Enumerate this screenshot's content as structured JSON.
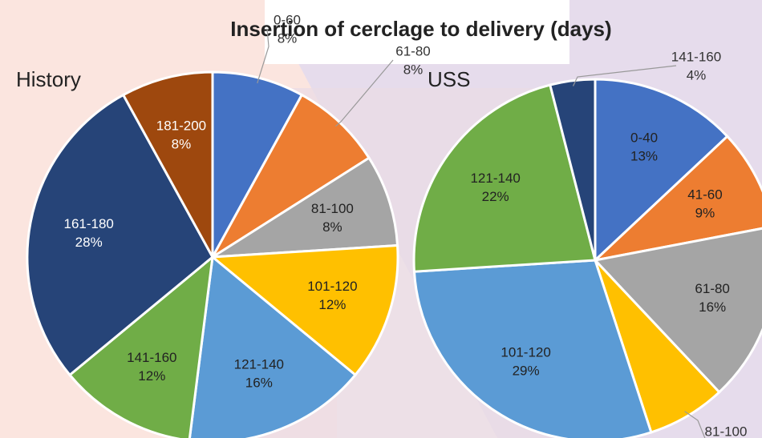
{
  "title": "Insertion of cerclage to delivery (days)",
  "chart_data": [
    {
      "type": "pie",
      "title": "History",
      "categories": [
        "0-60",
        "61-80",
        "81-100",
        "101-120",
        "121-140",
        "141-160",
        "161-180",
        "181-200"
      ],
      "values": [
        8,
        8,
        8,
        12,
        16,
        12,
        28,
        8
      ],
      "value_labels": [
        "8%",
        "8%",
        "8%",
        "12%",
        "16%",
        "12%",
        "28%",
        "8%"
      ],
      "colors": [
        "#4472c4",
        "#ed7d31",
        "#a5a5a5",
        "#ffc000",
        "#5b9bd5",
        "#70ad47",
        "#264478",
        "#9e480e"
      ]
    },
    {
      "type": "pie",
      "title": "USS",
      "categories": [
        "0-40",
        "41-60",
        "61-80",
        "81-100",
        "101-120",
        "121-140",
        "141-160"
      ],
      "values": [
        13,
        9,
        16,
        7,
        29,
        22,
        4
      ],
      "value_labels": [
        "13%",
        "9%",
        "16%",
        "7%",
        "29%",
        "22%",
        "4%"
      ],
      "colors": [
        "#4472c4",
        "#ed7d31",
        "#a5a5a5",
        "#ffc000",
        "#5b9bd5",
        "#70ad47",
        "#264478"
      ]
    }
  ]
}
